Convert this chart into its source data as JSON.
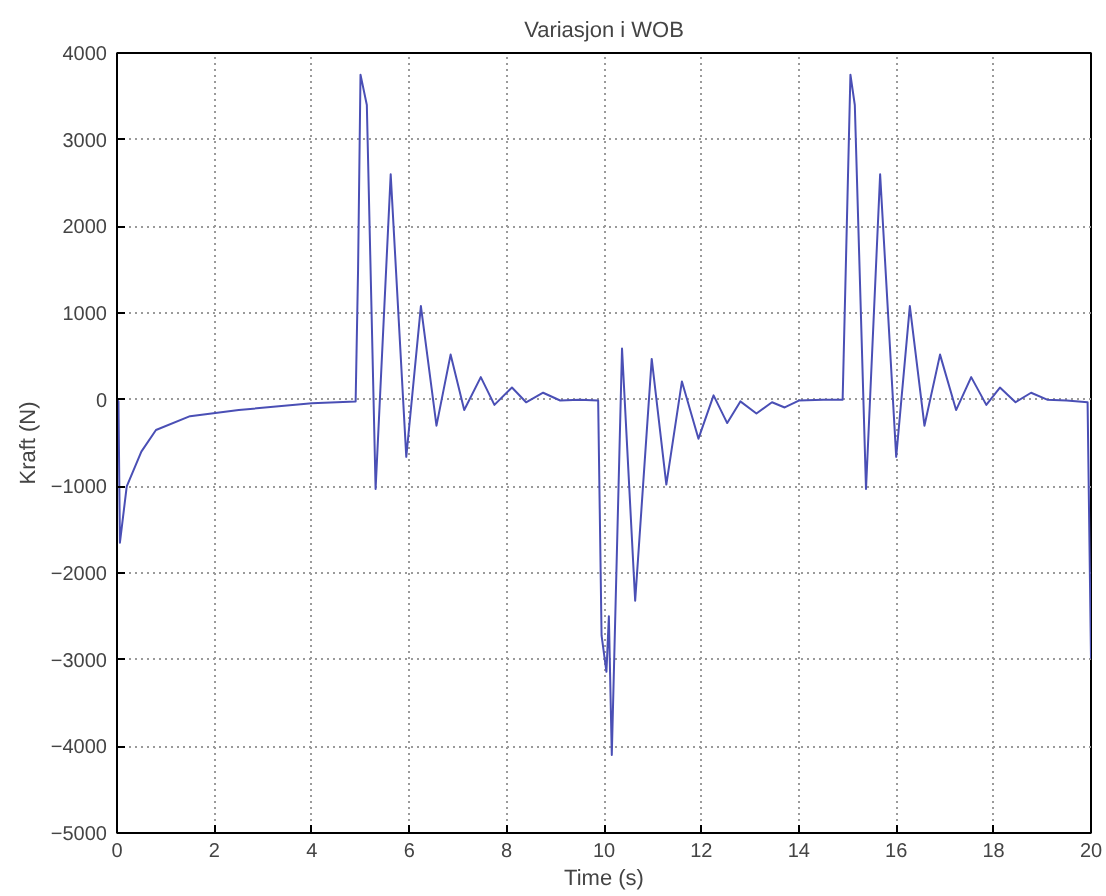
{
  "chart_data": {
    "type": "line",
    "title": "Variasjon i WOB",
    "xlabel": "Time (s)",
    "ylabel": "Kraft (N)",
    "xlim": [
      0,
      20
    ],
    "ylim": [
      -5000,
      4000
    ],
    "xticks": [
      0,
      2,
      4,
      6,
      8,
      10,
      12,
      14,
      16,
      18,
      20
    ],
    "yticks": [
      -5000,
      -4000,
      -3000,
      -2000,
      -1000,
      0,
      1000,
      2000,
      3000,
      4000
    ],
    "grid": true,
    "marker": "none",
    "line_style": "solid",
    "series": [
      {
        "color": "#4a4fb5",
        "x": [
          0,
          0.03,
          0.06,
          0.2,
          0.5,
          0.8,
          1.5,
          2.5,
          4.0,
          4.9,
          4.95,
          5.0,
          5.13,
          5.31,
          5.62,
          5.94,
          6.24,
          6.56,
          6.85,
          7.13,
          7.47,
          7.75,
          8.11,
          8.4,
          8.75,
          9.1,
          9.5,
          9.88,
          9.95,
          10.05,
          10.1,
          10.16,
          10.37,
          10.64,
          10.98,
          11.28,
          11.6,
          11.94,
          12.25,
          12.53,
          12.8,
          13.13,
          13.45,
          13.71,
          14.0,
          14.5,
          14.9,
          15.06,
          15.15,
          15.38,
          15.67,
          16.0,
          16.28,
          16.58,
          16.9,
          17.23,
          17.54,
          17.85,
          18.13,
          18.45,
          18.77,
          19.1,
          19.5,
          19.93,
          20.0
        ],
        "values": [
          0,
          -20,
          -1650,
          -1000,
          -600,
          -350,
          -190,
          -120,
          -40,
          -20,
          1500,
          3750,
          3400,
          -1030,
          2600,
          -660,
          1080,
          -300,
          520,
          -120,
          260,
          -60,
          140,
          -30,
          80,
          -10,
          0,
          -10,
          -2720,
          -3140,
          -2500,
          -4100,
          590,
          -2320,
          470,
          -980,
          210,
          -450,
          50,
          -270,
          -20,
          -160,
          -30,
          -90,
          -10,
          0,
          0,
          3750,
          3400,
          -1030,
          2600,
          -660,
          1080,
          -300,
          520,
          -120,
          260,
          -60,
          140,
          -30,
          80,
          0,
          -10,
          -30,
          -2990
        ]
      }
    ]
  }
}
